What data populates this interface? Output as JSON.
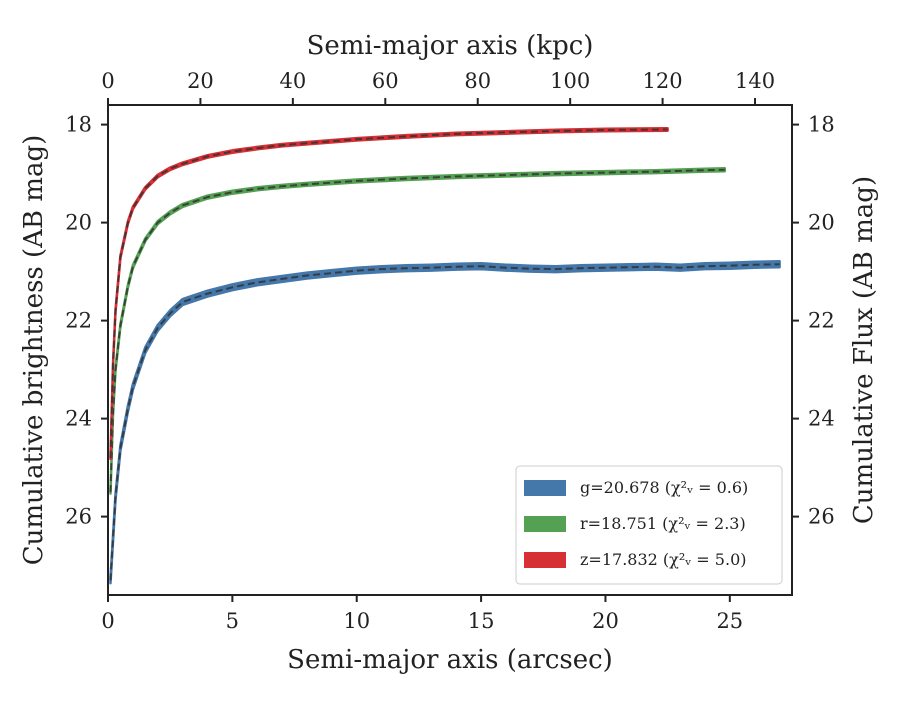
{
  "chart_data": {
    "type": "line",
    "x_axis": {
      "label": "Semi-major axis (arcsec)",
      "range": [
        0,
        27.5
      ],
      "ticks": [
        0,
        5,
        10,
        15,
        20,
        25
      ],
      "tick_labels": [
        "0",
        "5",
        "10",
        "15",
        "20",
        "25"
      ]
    },
    "x2_axis": {
      "label": "Semi-major axis (kpc)",
      "range": [
        0,
        148
      ],
      "ticks": [
        0,
        20,
        40,
        60,
        80,
        100,
        120,
        140
      ],
      "tick_labels": [
        "0",
        "20",
        "40",
        "60",
        "80",
        "100",
        "120",
        "140"
      ]
    },
    "y_axis": {
      "label": "Cumulative brightness (AB mag)",
      "range": [
        27.6,
        17.6
      ],
      "inverted": true,
      "ticks": [
        18,
        20,
        22,
        24,
        26
      ],
      "tick_labels": [
        "18",
        "20",
        "22",
        "24",
        "26"
      ]
    },
    "y2_axis": {
      "label": "Cumulative Flux (AB mag)",
      "ticks": [
        18,
        20,
        22,
        24,
        26
      ],
      "tick_labels": [
        "18",
        "20",
        "22",
        "24",
        "26"
      ]
    },
    "grid": false,
    "legend_position": "lower right",
    "series": [
      {
        "name": "g=20.678",
        "legend_label": "g=20.678 (χ²ᵥ = 0.6)",
        "color": "#4477aa",
        "band_width": 0.12,
        "x": [
          0.1,
          0.3,
          0.5,
          0.8,
          1.0,
          1.5,
          2.0,
          2.5,
          3.0,
          4.0,
          5.0,
          6.0,
          7.0,
          8.0,
          9.0,
          10.0,
          11.0,
          12.0,
          13.0,
          14.0,
          15.0,
          16.0,
          17.0,
          18.0,
          19.0,
          20.0,
          21.0,
          22.0,
          23.0,
          24.0,
          25.0,
          26.0,
          27.0
        ],
        "y": [
          27.3,
          25.6,
          24.6,
          23.8,
          23.35,
          22.6,
          22.15,
          21.85,
          21.62,
          21.45,
          21.32,
          21.22,
          21.15,
          21.08,
          21.03,
          20.98,
          20.95,
          20.93,
          20.92,
          20.9,
          20.89,
          20.92,
          20.94,
          20.95,
          20.93,
          20.92,
          20.91,
          20.9,
          20.92,
          20.89,
          20.88,
          20.86,
          20.85
        ]
      },
      {
        "name": "r=18.751",
        "legend_label": "r=18.751 (χ²ᵥ = 2.3)",
        "color": "#55a153",
        "band_width": 0.06,
        "x": [
          0.1,
          0.2,
          0.3,
          0.5,
          0.8,
          1.0,
          1.5,
          2.0,
          2.5,
          3.0,
          4.0,
          5.0,
          6.0,
          7.0,
          8.0,
          10.0,
          12.0,
          14.0,
          16.0,
          18.0,
          20.0,
          22.0,
          24.0,
          24.8
        ],
        "y": [
          25.5,
          23.9,
          23.0,
          22.1,
          21.3,
          20.9,
          20.35,
          20.0,
          19.8,
          19.65,
          19.48,
          19.38,
          19.31,
          19.26,
          19.22,
          19.15,
          19.1,
          19.06,
          19.03,
          19.0,
          18.98,
          18.96,
          18.93,
          18.92
        ]
      },
      {
        "name": "z=17.832",
        "legend_label": "z=17.832 (χ²ᵥ = 5.0)",
        "color": "#d62f34",
        "band_width": 0.05,
        "x": [
          0.1,
          0.2,
          0.3,
          0.5,
          0.8,
          1.0,
          1.5,
          2.0,
          2.5,
          3.0,
          4.0,
          5.0,
          6.0,
          7.0,
          8.0,
          10.0,
          12.0,
          14.0,
          16.0,
          18.0,
          20.0,
          22.5
        ],
        "y": [
          24.8,
          22.9,
          21.8,
          20.7,
          20.0,
          19.7,
          19.3,
          19.05,
          18.9,
          18.8,
          18.65,
          18.55,
          18.48,
          18.42,
          18.38,
          18.3,
          18.24,
          18.19,
          18.16,
          18.13,
          18.11,
          18.1
        ]
      }
    ]
  }
}
